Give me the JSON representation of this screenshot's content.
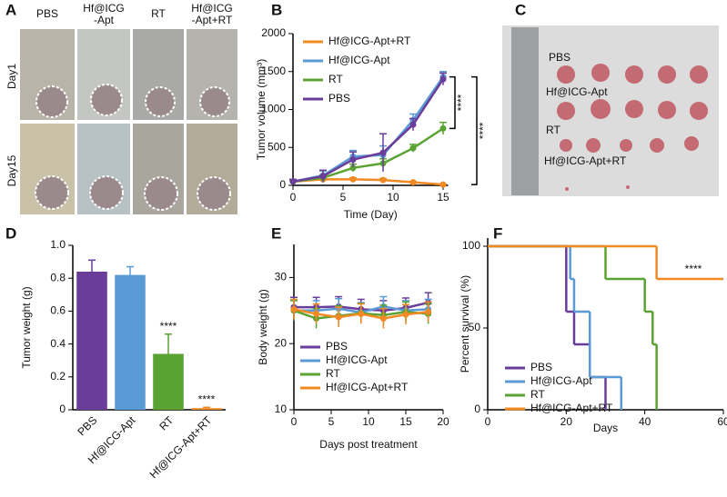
{
  "photos": {
    "A": {
      "label": "A",
      "columns": [
        [
          "PBS"
        ],
        [
          "Hf@ICG",
          "-Apt"
        ],
        [
          "RT"
        ],
        [
          "Hf@ICG",
          "-Apt+RT"
        ]
      ],
      "rows": [
        "Day1",
        "Day15"
      ]
    },
    "C": {
      "label": "C",
      "rows": [
        "PBS",
        "Hf@ICG-Apt",
        "RT",
        "Hf@ICG-Apt+RT"
      ]
    }
  },
  "chart_data": [
    {
      "type": "line",
      "label": "B",
      "xlabel": "Time (Day)",
      "ylabel": "Tumor volume (mm³)",
      "x": [
        0,
        3,
        6,
        9,
        12,
        15
      ],
      "xlim": [
        0,
        15.5
      ],
      "xticks": [
        0,
        5,
        10,
        15
      ],
      "ylim": [
        0,
        2000
      ],
      "yticks": [
        0,
        500,
        1000,
        1500,
        2000
      ],
      "legend": "upper left",
      "significance": [
        "****",
        "****"
      ],
      "series": [
        {
          "name": "Hf@ICG-Apt+RT",
          "color": "#f28a24",
          "values": [
            50,
            80,
            80,
            70,
            40,
            10
          ],
          "errors": [
            10,
            20,
            20,
            20,
            10,
            5
          ]
        },
        {
          "name": "Hf@ICG-Apt",
          "color": "#5b9bd5",
          "values": [
            50,
            130,
            380,
            400,
            860,
            1430
          ],
          "errors": [
            20,
            60,
            80,
            120,
            80,
            70
          ]
        },
        {
          "name": "RT",
          "color": "#5aa333",
          "values": [
            50,
            100,
            230,
            290,
            490,
            750
          ],
          "errors": [
            20,
            40,
            50,
            60,
            50,
            80
          ]
        },
        {
          "name": "PBS",
          "color": "#6a3d9a",
          "values": [
            50,
            120,
            340,
            430,
            800,
            1400
          ],
          "errors": [
            30,
            80,
            100,
            250,
            80,
            80
          ]
        }
      ]
    },
    {
      "type": "bar",
      "label": "D",
      "ylabel": "Tumor weight (g)",
      "categories": [
        "PBS",
        "Hf@ICG-Apt",
        "RT",
        "Hf@ICG-Apt+RT"
      ],
      "values": [
        0.84,
        0.82,
        0.34,
        0.01
      ],
      "errors": [
        0.07,
        0.05,
        0.12,
        0.005
      ],
      "colors": [
        "#6a3d9a",
        "#5b9bd5",
        "#5aa333",
        "#f28a24"
      ],
      "significance": [
        null,
        null,
        "****",
        "****"
      ],
      "ylim": [
        0,
        1.0
      ],
      "yticks": [
        0,
        0.2,
        0.4,
        0.6,
        0.8,
        {
          "value": 1.0,
          "label": "1.0"
        }
      ]
    },
    {
      "type": "line",
      "label": "E",
      "xlabel": "Days post treatment",
      "ylabel": "Body weight (g)",
      "x": [
        0,
        3,
        6,
        9,
        12,
        15,
        18
      ],
      "xlim": [
        0,
        20
      ],
      "xticks": [
        0,
        5,
        10,
        15,
        20
      ],
      "ylim": [
        10,
        35
      ],
      "yticks": [
        10,
        20,
        30
      ],
      "legend": "lower left",
      "series": [
        {
          "name": "PBS",
          "color": "#6a3d9a",
          "values": [
            25.5,
            25.5,
            25.6,
            25.2,
            25,
            25.4,
            26.2
          ],
          "errors": [
            1.5,
            1.5,
            1.5,
            1.5,
            1.5,
            1.5,
            1.5
          ]
        },
        {
          "name": "Hf@ICG-Apt",
          "color": "#5b9bd5",
          "values": [
            25,
            25,
            25.3,
            24.7,
            25.6,
            25,
            25.2
          ],
          "errors": [
            1.5,
            1.5,
            1.5,
            1.5,
            1.5,
            1.5,
            1.5
          ]
        },
        {
          "name": "RT",
          "color": "#5aa333",
          "values": [
            25,
            23.8,
            24.2,
            24.6,
            24.3,
            24.8,
            24.5
          ],
          "errors": [
            1.5,
            1.5,
            1.5,
            1.5,
            1.5,
            1.5,
            1.5
          ]
        },
        {
          "name": "Hf@ICG-Apt+RT",
          "color": "#f28a24",
          "values": [
            25.2,
            24.5,
            24,
            24.5,
            23.8,
            24.4,
            24.8
          ],
          "errors": [
            1.5,
            1.5,
            1.5,
            1.5,
            1.5,
            1.5,
            1.5
          ]
        }
      ]
    },
    {
      "type": "step",
      "label": "F",
      "xlabel": "Days",
      "ylabel": "Percent survival (%)",
      "xlim": [
        0,
        60
      ],
      "xticks": [
        0,
        20,
        40,
        60
      ],
      "ylim": [
        0,
        105
      ],
      "yticks": [
        0,
        50,
        100
      ],
      "legend": "lower left",
      "annotation": "****",
      "series": [
        {
          "name": "PBS",
          "color": "#6a3d9a",
          "x": [
            0,
            20,
            22,
            26,
            30
          ],
          "values": [
            100,
            60,
            40,
            20,
            0
          ]
        },
        {
          "name": "Hf@ICG-Apt",
          "color": "#5b9bd5",
          "x": [
            0,
            21,
            22,
            26,
            34
          ],
          "values": [
            100,
            80,
            60,
            20,
            0
          ]
        },
        {
          "name": "RT",
          "color": "#5aa333",
          "x": [
            0,
            30,
            40,
            42,
            43
          ],
          "values": [
            100,
            80,
            60,
            40,
            0
          ]
        },
        {
          "name": "Hf@ICG-Apt+RT",
          "color": "#f28a24",
          "x": [
            0,
            43,
            60
          ],
          "values": [
            100,
            80,
            80
          ]
        }
      ]
    }
  ]
}
